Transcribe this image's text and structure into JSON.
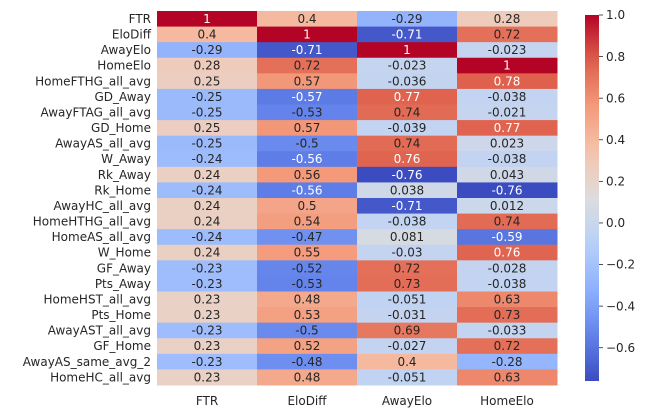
{
  "chart_data": {
    "type": "heatmap",
    "title": "",
    "columns": [
      "FTR",
      "EloDiff",
      "AwayElo",
      "HomeElo"
    ],
    "rows": [
      "FTR",
      "EloDiff",
      "AwayElo",
      "HomeElo",
      "HomeFTHG_all_avg",
      "GD_Away",
      "AwayFTAG_all_avg",
      "GD_Home",
      "AwayAS_all_avg",
      "W_Away",
      "Rk_Away",
      "Rk_Home",
      "AwayHC_all_avg",
      "HomeHTHG_all_avg",
      "HomeAS_all_avg",
      "W_Home",
      "GF_Away",
      "Pts_Away",
      "HomeHST_all_avg",
      "Pts_Home",
      "AwayAST_all_avg",
      "GF_Home",
      "AwayAS_same_avg_2",
      "HomeHC_all_avg"
    ],
    "values": [
      [
        1,
        0.4,
        -0.29,
        0.28
      ],
      [
        0.4,
        1,
        -0.71,
        0.72
      ],
      [
        -0.29,
        -0.71,
        1,
        -0.023
      ],
      [
        0.28,
        0.72,
        -0.023,
        1
      ],
      [
        0.25,
        0.57,
        -0.036,
        0.78
      ],
      [
        -0.25,
        -0.57,
        0.77,
        -0.038
      ],
      [
        -0.25,
        -0.53,
        0.74,
        -0.021
      ],
      [
        0.25,
        0.57,
        -0.039,
        0.77
      ],
      [
        -0.25,
        -0.5,
        0.74,
        0.023
      ],
      [
        -0.24,
        -0.56,
        0.76,
        -0.038
      ],
      [
        0.24,
        0.56,
        -0.76,
        0.043
      ],
      [
        -0.24,
        -0.56,
        0.038,
        -0.76
      ],
      [
        0.24,
        0.5,
        -0.71,
        0.012
      ],
      [
        0.24,
        0.54,
        -0.038,
        0.74
      ],
      [
        -0.24,
        -0.47,
        0.081,
        -0.59
      ],
      [
        0.24,
        0.55,
        -0.03,
        0.76
      ],
      [
        -0.23,
        -0.52,
        0.72,
        -0.028
      ],
      [
        -0.23,
        -0.53,
        0.73,
        -0.038
      ],
      [
        0.23,
        0.48,
        -0.051,
        0.63
      ],
      [
        0.23,
        0.53,
        -0.031,
        0.73
      ],
      [
        -0.23,
        -0.5,
        0.69,
        -0.033
      ],
      [
        0.23,
        0.52,
        -0.027,
        0.72
      ],
      [
        -0.23,
        -0.48,
        0.4,
        -0.28
      ],
      [
        0.23,
        0.48,
        -0.051,
        0.63
      ]
    ],
    "labels": [
      [
        "1",
        "0.4",
        "-0.29",
        "0.28"
      ],
      [
        "0.4",
        "1",
        "-0.71",
        "0.72"
      ],
      [
        "-0.29",
        "-0.71",
        "1",
        "-0.023"
      ],
      [
        "0.28",
        "0.72",
        "-0.023",
        "1"
      ],
      [
        "0.25",
        "0.57",
        "-0.036",
        "0.78"
      ],
      [
        "-0.25",
        "-0.57",
        "0.77",
        "-0.038"
      ],
      [
        "-0.25",
        "-0.53",
        "0.74",
        "-0.021"
      ],
      [
        "0.25",
        "0.57",
        "-0.039",
        "0.77"
      ],
      [
        "-0.25",
        "-0.5",
        "0.74",
        "0.023"
      ],
      [
        "-0.24",
        "-0.56",
        "0.76",
        "-0.038"
      ],
      [
        "0.24",
        "0.56",
        "-0.76",
        "0.043"
      ],
      [
        "-0.24",
        "-0.56",
        "0.038",
        "-0.76"
      ],
      [
        "0.24",
        "0.5",
        "-0.71",
        "0.012"
      ],
      [
        "0.24",
        "0.54",
        "-0.038",
        "0.74"
      ],
      [
        "-0.24",
        "-0.47",
        "0.081",
        "-0.59"
      ],
      [
        "0.24",
        "0.55",
        "-0.03",
        "0.76"
      ],
      [
        "-0.23",
        "-0.52",
        "0.72",
        "-0.028"
      ],
      [
        "-0.23",
        "-0.53",
        "0.73",
        "-0.038"
      ],
      [
        "0.23",
        "0.48",
        "-0.051",
        "0.63"
      ],
      [
        "0.23",
        "0.53",
        "-0.031",
        "0.73"
      ],
      [
        "-0.23",
        "-0.5",
        "0.69",
        "-0.033"
      ],
      [
        "0.23",
        "0.52",
        "-0.027",
        "0.72"
      ],
      [
        "-0.23",
        "-0.48",
        "0.4",
        "-0.28"
      ],
      [
        "0.23",
        "0.48",
        "-0.051",
        "0.63"
      ]
    ],
    "colorbar": {
      "colormap": "coolwarm",
      "vmin": -0.76,
      "vmax": 1,
      "ticks": [
        -0.6,
        -0.4,
        -0.2,
        0.0,
        0.2,
        0.4,
        0.6,
        0.8,
        1.0
      ],
      "tick_labels": [
        "−0.6",
        "−0.4",
        "−0.2",
        "0.0",
        "0.2",
        "0.4",
        "0.6",
        "0.8",
        "1.0"
      ]
    },
    "grid": false,
    "legend": "colorbar-right"
  }
}
